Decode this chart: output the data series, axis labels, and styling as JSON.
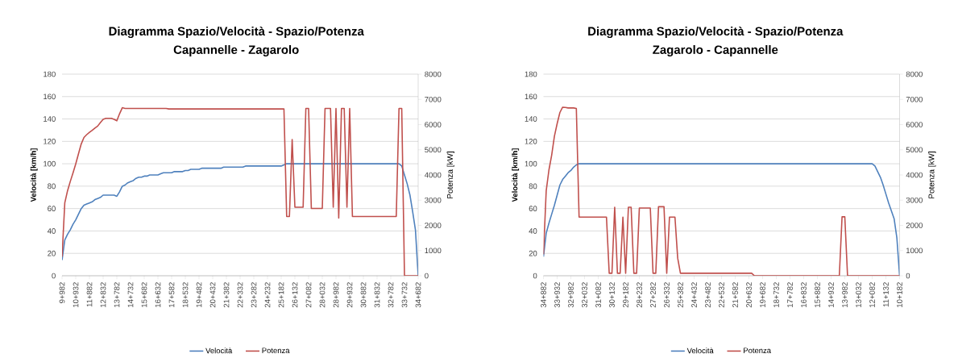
{
  "chart_data": [
    {
      "type": "line",
      "title": "Diagramma Spazio/Velocità - Spazio/Potenza",
      "subtitle": "Capannelle - Zagarolo",
      "ylabel": "Velocità  [km/h]",
      "y2label": "Potenza  [kW]",
      "categories": [
        "9+982",
        null,
        null,
        null,
        null,
        "10+932",
        null,
        null,
        null,
        null,
        "11+882",
        null,
        null,
        null,
        null,
        "12+832",
        null,
        null,
        null,
        null,
        "13+782",
        null,
        null,
        null,
        null,
        "14+732",
        null,
        null,
        null,
        null,
        "15+682",
        null,
        null,
        null,
        null,
        "16+632",
        null,
        null,
        null,
        null,
        "17+582",
        null,
        null,
        null,
        null,
        "18+532",
        null,
        null,
        null,
        null,
        "19+482",
        null,
        null,
        null,
        null,
        "20+432",
        null,
        null,
        null,
        null,
        "21+382",
        null,
        null,
        null,
        null,
        "22+332",
        null,
        null,
        null,
        null,
        "23+282",
        null,
        null,
        null,
        null,
        "24+232",
        null,
        null,
        null,
        null,
        "25+182",
        null,
        null,
        null,
        null,
        "26+132",
        null,
        null,
        null,
        null,
        "27+082",
        null,
        null,
        null,
        null,
        "28+032",
        null,
        null,
        null,
        null,
        "28+982",
        null,
        null,
        null,
        null,
        "29+932",
        null,
        null,
        null,
        null,
        "30+882",
        null,
        null,
        null,
        null,
        "31+832",
        null,
        null,
        null,
        null,
        "32+782",
        null,
        null,
        null,
        null,
        "33+732",
        null,
        null,
        null,
        null,
        "34+682"
      ],
      "ylim": [
        0,
        180
      ],
      "yticks": [
        0,
        20,
        40,
        60,
        80,
        100,
        120,
        140,
        160,
        180
      ],
      "y2lim": [
        0,
        8000
      ],
      "y2ticks": [
        0,
        1000,
        2000,
        3000,
        4000,
        5000,
        6000,
        7000,
        8000
      ],
      "grid": "y",
      "legend": "bottom",
      "line_style": "solid",
      "series": [
        {
          "name": "Velocità",
          "color": "#4f81bd",
          "values": [
            14,
            32,
            37,
            41,
            46,
            50,
            55,
            60,
            63,
            64,
            65,
            66,
            68,
            69,
            70,
            72,
            72,
            72,
            72,
            72,
            71,
            75,
            80,
            81,
            83,
            84,
            85,
            87,
            88,
            88,
            89,
            89,
            90,
            90,
            90,
            90,
            91,
            92,
            92,
            92,
            92,
            93,
            93,
            93,
            93,
            94,
            94,
            95,
            95,
            95,
            95,
            96,
            96,
            96,
            96,
            96,
            96,
            96,
            96,
            97,
            97,
            97,
            97,
            97,
            97,
            97,
            97,
            98,
            98,
            98,
            98,
            98,
            98,
            98,
            98,
            98,
            98,
            98,
            98,
            98,
            98,
            99,
            100,
            100,
            100,
            100,
            100,
            100,
            100,
            100,
            100,
            100,
            100,
            100,
            100,
            100,
            100,
            100,
            100,
            100,
            100,
            100,
            100,
            100,
            100,
            100,
            100,
            100,
            100,
            100,
            100,
            100,
            100,
            100,
            100,
            100,
            100,
            100,
            100,
            100,
            100,
            100,
            100,
            100,
            98,
            90,
            82,
            72,
            57,
            41,
            0
          ]
        },
        {
          "name": "Potenza",
          "color": "#c0504d",
          "axis": "y2",
          "values": [
            750,
            2890,
            3370,
            3740,
            4080,
            4440,
            4840,
            5230,
            5490,
            5600,
            5690,
            5770,
            5860,
            5940,
            6080,
            6210,
            6250,
            6250,
            6250,
            6210,
            6150,
            6430,
            6670,
            6640,
            6640,
            6640,
            6640,
            6640,
            6640,
            6640,
            6640,
            6640,
            6640,
            6640,
            6640,
            6640,
            6640,
            6640,
            6640,
            6620,
            6620,
            6620,
            6620,
            6620,
            6620,
            6620,
            6620,
            6620,
            6620,
            6620,
            6620,
            6620,
            6620,
            6620,
            6620,
            6620,
            6620,
            6620,
            6620,
            6620,
            6620,
            6620,
            6620,
            6620,
            6620,
            6620,
            6620,
            6620,
            6620,
            6620,
            6620,
            6620,
            6620,
            6620,
            6620,
            6620,
            6620,
            6620,
            6620,
            6620,
            6620,
            6620,
            2350,
            2350,
            5410,
            2720,
            2720,
            2720,
            2720,
            6640,
            6640,
            2670,
            2670,
            2670,
            2670,
            2670,
            6640,
            6640,
            6640,
            2720,
            6640,
            2290,
            6640,
            6640,
            2720,
            6640,
            2350,
            2350,
            2350,
            2350,
            2350,
            2350,
            2350,
            2350,
            2350,
            2350,
            2350,
            2350,
            2350,
            2350,
            2350,
            2350,
            2350,
            6640,
            6640,
            0,
            0,
            0,
            0,
            0,
            0
          ]
        }
      ]
    },
    {
      "type": "line",
      "title": "Diagramma Spazio/Velocità - Spazio/Potenza",
      "subtitle": "Zagarolo - Capannelle",
      "ylabel": "Velocità  [km/h]",
      "y2label": "Potenza  [kW]",
      "categories": [
        "34+882",
        null,
        null,
        null,
        null,
        "33+932",
        null,
        null,
        null,
        null,
        "32+982",
        null,
        null,
        null,
        null,
        "32+032",
        null,
        null,
        null,
        null,
        "31+082",
        null,
        null,
        null,
        null,
        "30+132",
        null,
        null,
        null,
        null,
        "29+182",
        null,
        null,
        null,
        null,
        "28+232",
        null,
        null,
        null,
        null,
        "27+282",
        null,
        null,
        null,
        null,
        "26+332",
        null,
        null,
        null,
        null,
        "25+382",
        null,
        null,
        null,
        null,
        "24+432",
        null,
        null,
        null,
        null,
        "23+482",
        null,
        null,
        null,
        null,
        "22+532",
        null,
        null,
        null,
        null,
        "21+582",
        null,
        null,
        null,
        null,
        "20+632",
        null,
        null,
        null,
        null,
        "19+682",
        null,
        null,
        null,
        null,
        "18+732",
        null,
        null,
        null,
        null,
        "17+782",
        null,
        null,
        null,
        null,
        "16+832",
        null,
        null,
        null,
        null,
        "15+882",
        null,
        null,
        null,
        null,
        "14+932",
        null,
        null,
        null,
        null,
        "13+982",
        null,
        null,
        null,
        null,
        "13+032",
        null,
        null,
        null,
        null,
        "12+082",
        null,
        null,
        null,
        null,
        "11+132",
        null,
        null,
        null,
        null,
        "10+182"
      ],
      "ylim": [
        0,
        180
      ],
      "yticks": [
        0,
        20,
        40,
        60,
        80,
        100,
        120,
        140,
        160,
        180
      ],
      "y2lim": [
        0,
        8000
      ],
      "y2ticks": [
        0,
        1000,
        2000,
        3000,
        4000,
        5000,
        6000,
        7000,
        8000
      ],
      "grid": "y",
      "legend": "bottom",
      "line_style": "solid",
      "series": [
        {
          "name": "Velocità",
          "color": "#4f81bd",
          "values": [
            17,
            38,
            47,
            55,
            63,
            72,
            81,
            86,
            89,
            92,
            94,
            97,
            99,
            100,
            100,
            100,
            100,
            100,
            100,
            100,
            100,
            100,
            100,
            100,
            100,
            100,
            100,
            100,
            100,
            100,
            100,
            100,
            100,
            100,
            100,
            100,
            100,
            100,
            100,
            100,
            100,
            100,
            100,
            100,
            100,
            100,
            100,
            100,
            100,
            100,
            100,
            100,
            100,
            100,
            100,
            100,
            100,
            100,
            100,
            100,
            100,
            100,
            100,
            100,
            100,
            100,
            100,
            100,
            100,
            100,
            100,
            100,
            100,
            100,
            100,
            100,
            100,
            100,
            100,
            100,
            100,
            100,
            100,
            100,
            100,
            100,
            100,
            100,
            100,
            100,
            100,
            100,
            100,
            100,
            100,
            100,
            100,
            100,
            100,
            100,
            100,
            100,
            100,
            100,
            100,
            100,
            100,
            100,
            100,
            100,
            100,
            100,
            100,
            100,
            100,
            100,
            100,
            100,
            100,
            100,
            100,
            98,
            93,
            88,
            81,
            73,
            65,
            58,
            51,
            34,
            0
          ]
        },
        {
          "name": "Potenza",
          "color": "#c0504d",
          "axis": "y2",
          "values": [
            850,
            3370,
            4200,
            4790,
            5540,
            6040,
            6480,
            6690,
            6680,
            6660,
            6660,
            6660,
            6640,
            2330,
            2330,
            2330,
            2330,
            2330,
            2330,
            2330,
            2330,
            2330,
            2330,
            2330,
            100,
            100,
            2720,
            100,
            100,
            2330,
            100,
            2720,
            2720,
            100,
            100,
            2690,
            2690,
            2690,
            2690,
            2690,
            100,
            100,
            2740,
            2740,
            2740,
            100,
            2330,
            2330,
            2330,
            700,
            100,
            100,
            100,
            100,
            100,
            100,
            100,
            100,
            100,
            100,
            100,
            100,
            100,
            100,
            100,
            100,
            100,
            100,
            100,
            100,
            100,
            100,
            100,
            100,
            100,
            100,
            100,
            0,
            0,
            0,
            0,
            0,
            0,
            0,
            0,
            0,
            0,
            0,
            0,
            0,
            0,
            0,
            0,
            0,
            0,
            0,
            0,
            0,
            0,
            0,
            0,
            0,
            0,
            0,
            0,
            0,
            0,
            0,
            0,
            2340,
            2340,
            0,
            0,
            0,
            0,
            0,
            0,
            0,
            0,
            0,
            0,
            0,
            0,
            0,
            0,
            0,
            0,
            0,
            0,
            0,
            0
          ]
        }
      ]
    }
  ]
}
